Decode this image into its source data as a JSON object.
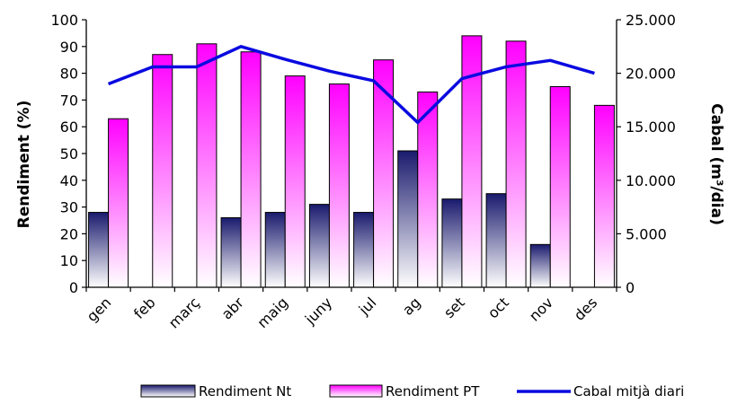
{
  "chart_data": {
    "type": "bar",
    "categories": [
      "gen",
      "feb",
      "març",
      "abr",
      "maig",
      "juny",
      "jul",
      "ag",
      "set",
      "oct",
      "nov",
      "des"
    ],
    "series": [
      {
        "name": "Rendiment Nt",
        "kind": "bar",
        "axis": "left",
        "values": [
          28,
          null,
          null,
          26,
          28,
          31,
          28,
          51,
          33,
          35,
          16,
          null
        ],
        "color_top": "#1a1a6e",
        "color_bottom": "#ffffff"
      },
      {
        "name": "Rendiment PT",
        "kind": "bar",
        "axis": "left",
        "values": [
          63,
          87,
          91,
          88,
          79,
          76,
          85,
          73,
          94,
          92,
          75,
          68
        ],
        "color_top": "#ff00ff",
        "color_bottom": "#ffffff"
      },
      {
        "name": "Cabal mitjà diari",
        "kind": "line",
        "axis": "right",
        "values": [
          19000,
          20600,
          20600,
          22500,
          21300,
          20200,
          19300,
          15400,
          19500,
          20600,
          21200,
          20000
        ],
        "color": "#0a0ae0"
      }
    ],
    "ylabel": "Rendiment (%)",
    "y2label": "Cabal (m³/dia)",
    "ylim": [
      0,
      100
    ],
    "y2lim": [
      0,
      25000
    ],
    "yticks": [
      "0",
      "10",
      "20",
      "30",
      "40",
      "50",
      "60",
      "70",
      "80",
      "90",
      "100"
    ],
    "y2ticks": [
      "0",
      "5.000",
      "10.000",
      "15.000",
      "20.000",
      "25.000"
    ],
    "grid": false,
    "legend_position": "bottom-right"
  }
}
